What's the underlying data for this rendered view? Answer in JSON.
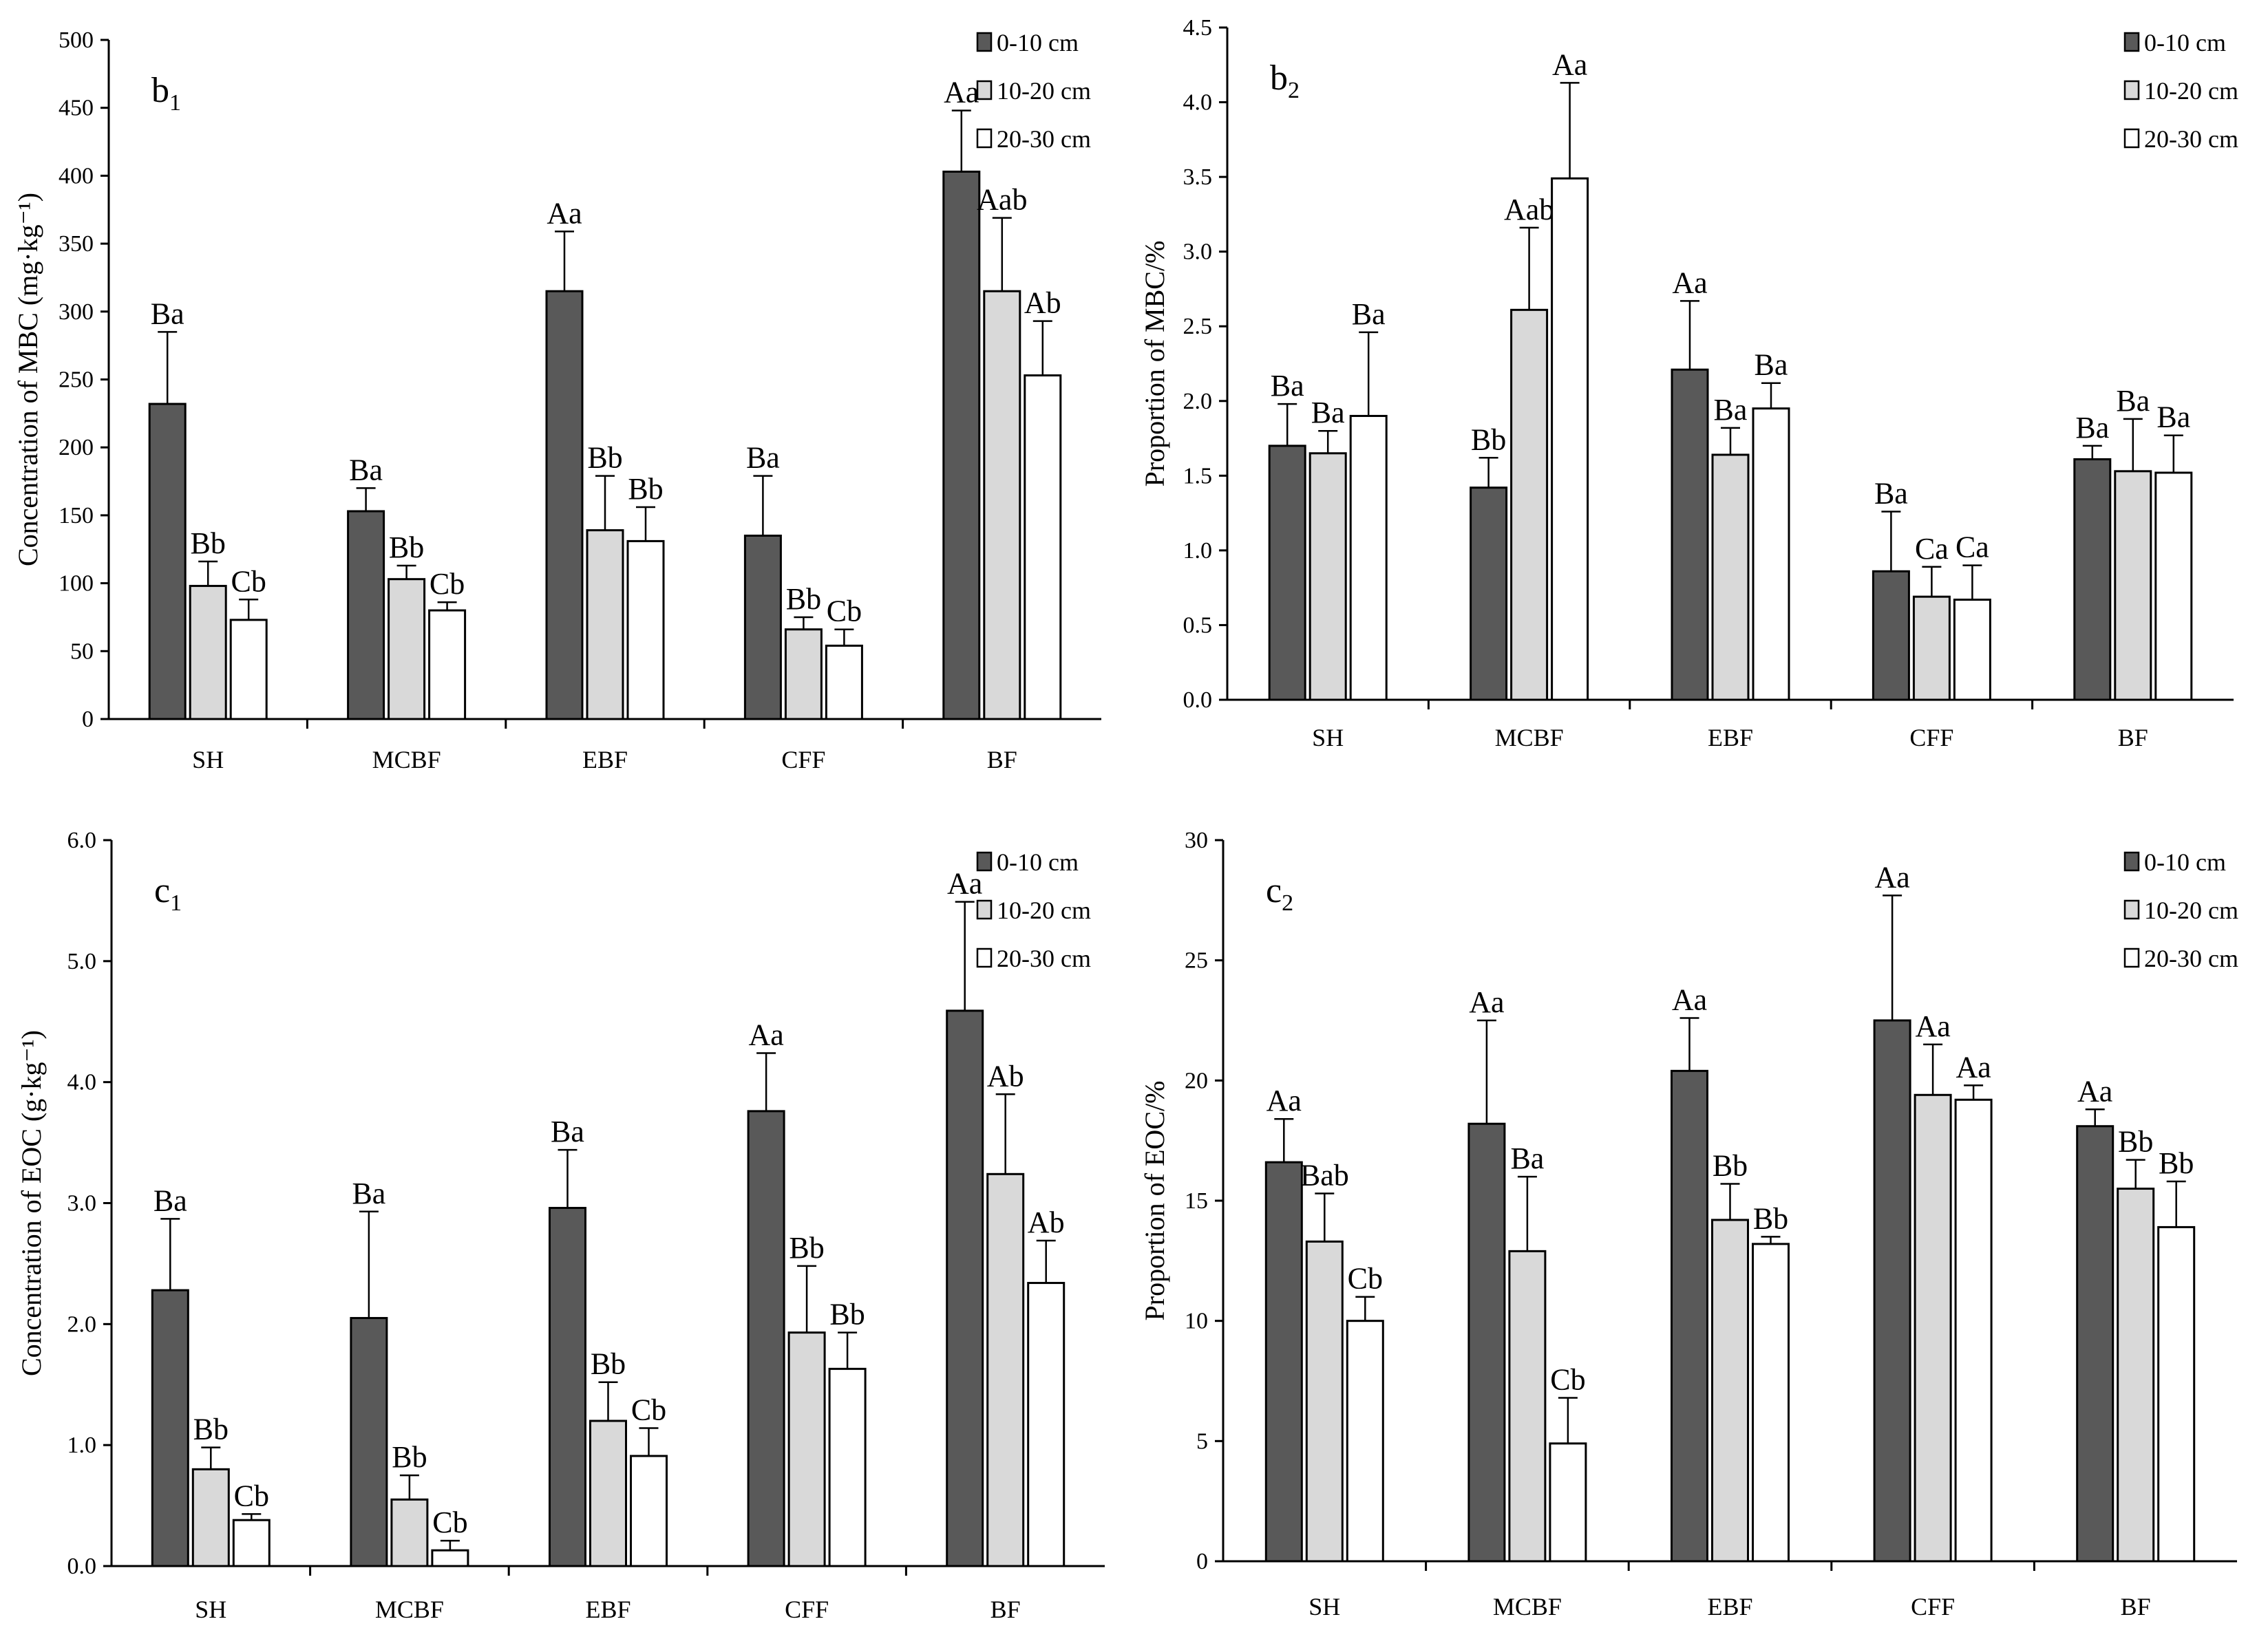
{
  "legend": [
    "0-10 cm",
    "10-20 cm",
    "20-30 cm"
  ],
  "colors": {
    "s0": "#595959",
    "s1": "#d9d9d9",
    "s2": "#ffffff",
    "axis": "#000000"
  },
  "categories": [
    "SH",
    "MCBF",
    "EBF",
    "CFF",
    "BF"
  ],
  "chart_data": [
    {
      "type": "bar",
      "panel_label": "b",
      "panel_sub": "1",
      "ylabel": "Concentration of MBC (mg·kg⁻¹)",
      "ylim": [
        0,
        500
      ],
      "ystep": 50,
      "ydecimals": 0,
      "legend_placement": "top-right",
      "categories": [
        "SH",
        "MCBF",
        "EBF",
        "CFF",
        "BF"
      ],
      "series": [
        {
          "name": "0-10 cm",
          "values": [
            232,
            153,
            315,
            135,
            403
          ],
          "errors": [
            53,
            17,
            44,
            44,
            45
          ],
          "labels": [
            "Ba",
            "Ba",
            "Aa",
            "Ba",
            "Aa"
          ]
        },
        {
          "name": "10-20 cm",
          "values": [
            98,
            103,
            139,
            66,
            315
          ],
          "errors": [
            18,
            10,
            40,
            9,
            54
          ],
          "labels": [
            "Bb",
            "Bb",
            "Bb",
            "Bb",
            "Aab"
          ]
        },
        {
          "name": "20-30 cm",
          "values": [
            73,
            80,
            131,
            54,
            253
          ],
          "errors": [
            15,
            6,
            25,
            12,
            40
          ],
          "labels": [
            "Cb",
            "Cb",
            "Bb",
            "Cb",
            "Ab"
          ]
        }
      ]
    },
    {
      "type": "bar",
      "panel_label": "b",
      "panel_sub": "2",
      "ylabel": "Proportion of MBC/%",
      "ylim": [
        0,
        4.5
      ],
      "ystep": 0.5,
      "ydecimals": 1,
      "legend_placement": "top-right",
      "categories": [
        "SH",
        "MCBF",
        "EBF",
        "CFF",
        "BF"
      ],
      "series": [
        {
          "name": "0-10 cm",
          "values": [
            1.7,
            1.42,
            2.21,
            0.86,
            1.61
          ],
          "errors": [
            0.28,
            0.2,
            0.46,
            0.4,
            0.09
          ],
          "labels": [
            "Ba",
            "Bb",
            "Aa",
            "Ba",
            "Ba"
          ]
        },
        {
          "name": "10-20 cm",
          "values": [
            1.65,
            2.61,
            1.64,
            0.69,
            1.53
          ],
          "errors": [
            0.15,
            0.55,
            0.18,
            0.2,
            0.35
          ],
          "labels": [
            "Ba",
            "Aab",
            "Ba",
            "Ca",
            "Ba"
          ]
        },
        {
          "name": "20-30 cm",
          "values": [
            1.9,
            3.49,
            1.95,
            0.67,
            1.52
          ],
          "errors": [
            0.56,
            0.64,
            0.17,
            0.23,
            0.25
          ],
          "labels": [
            "Ba",
            "Aa",
            "Ba",
            "Ca",
            "Ba"
          ]
        }
      ]
    },
    {
      "type": "bar",
      "panel_label": "c",
      "panel_sub": "1",
      "ylabel": "Concentration of EOC (g·kg⁻¹)",
      "ylim": [
        0,
        6
      ],
      "ystep": 1,
      "ydecimals": 1,
      "legend_placement": "top-right",
      "categories": [
        "SH",
        "MCBF",
        "EBF",
        "CFF",
        "BF"
      ],
      "series": [
        {
          "name": "0-10 cm",
          "values": [
            2.28,
            2.05,
            2.96,
            3.76,
            4.59
          ],
          "errors": [
            0.59,
            0.88,
            0.48,
            0.48,
            0.9
          ],
          "labels": [
            "Ba",
            "Ba",
            "Ba",
            "Aa",
            "Aa"
          ]
        },
        {
          "name": "10-20 cm",
          "values": [
            0.8,
            0.55,
            1.2,
            1.93,
            3.24
          ],
          "errors": [
            0.18,
            0.2,
            0.32,
            0.55,
            0.66
          ],
          "labels": [
            "Bb",
            "Bb",
            "Bb",
            "Bb",
            "Ab"
          ]
        },
        {
          "name": "20-30 cm",
          "values": [
            0.38,
            0.13,
            0.91,
            1.63,
            2.34
          ],
          "errors": [
            0.05,
            0.08,
            0.23,
            0.3,
            0.35
          ],
          "labels": [
            "Cb",
            "Cb",
            "Cb",
            "Bb",
            "Ab"
          ]
        }
      ]
    },
    {
      "type": "bar",
      "panel_label": "c",
      "panel_sub": "2",
      "ylabel": "Proportion of EOC/%",
      "ylim": [
        0,
        30
      ],
      "ystep": 5,
      "ydecimals": 0,
      "legend_placement": "top-right",
      "categories": [
        "SH",
        "MCBF",
        "EBF",
        "CFF",
        "BF"
      ],
      "series": [
        {
          "name": "0-10 cm",
          "values": [
            16.6,
            18.2,
            20.4,
            22.5,
            18.1
          ],
          "errors": [
            1.8,
            4.3,
            2.2,
            5.2,
            0.7
          ],
          "labels": [
            "Aa",
            "Aa",
            "Aa",
            "Aa",
            "Aa"
          ]
        },
        {
          "name": "10-20 cm",
          "values": [
            13.3,
            12.9,
            14.2,
            19.4,
            15.5
          ],
          "errors": [
            2.0,
            3.1,
            1.5,
            2.1,
            1.2
          ],
          "labels": [
            "Bab",
            "Ba",
            "Bb",
            "Aa",
            "Bb"
          ]
        },
        {
          "name": "20-30 cm",
          "values": [
            10.0,
            4.9,
            13.2,
            19.2,
            13.9
          ],
          "errors": [
            1.0,
            1.9,
            0.3,
            0.6,
            1.9
          ],
          "labels": [
            "Cb",
            "Cb",
            "Bb",
            "Aa",
            "Bb"
          ]
        }
      ]
    }
  ]
}
